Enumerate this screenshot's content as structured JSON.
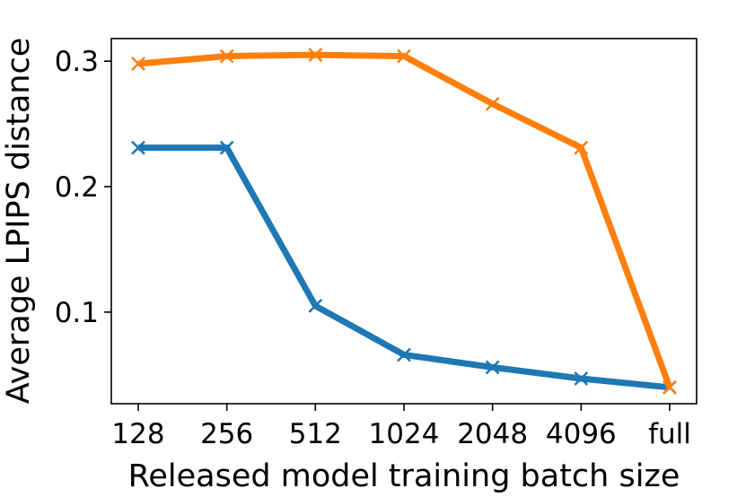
{
  "chart_data": {
    "type": "line",
    "xlabel": "Released model training batch size",
    "ylabel": "Average LPIPS distance",
    "categories": [
      "128",
      "256",
      "512",
      "1024",
      "2048",
      "4096",
      "full"
    ],
    "yticks": [
      "0.1",
      "0.2",
      "0.3"
    ],
    "ylim": [
      0.027,
      0.318
    ],
    "grid": false,
    "series": [
      {
        "color": "#1f77b4",
        "marker": "x",
        "values": [
          0.231,
          0.231,
          0.105,
          0.066,
          0.056,
          0.047,
          0.04
        ]
      },
      {
        "color": "#ff7f0e",
        "marker": "x",
        "values": [
          0.298,
          0.304,
          0.305,
          0.304,
          0.266,
          0.231,
          0.04
        ]
      }
    ]
  }
}
